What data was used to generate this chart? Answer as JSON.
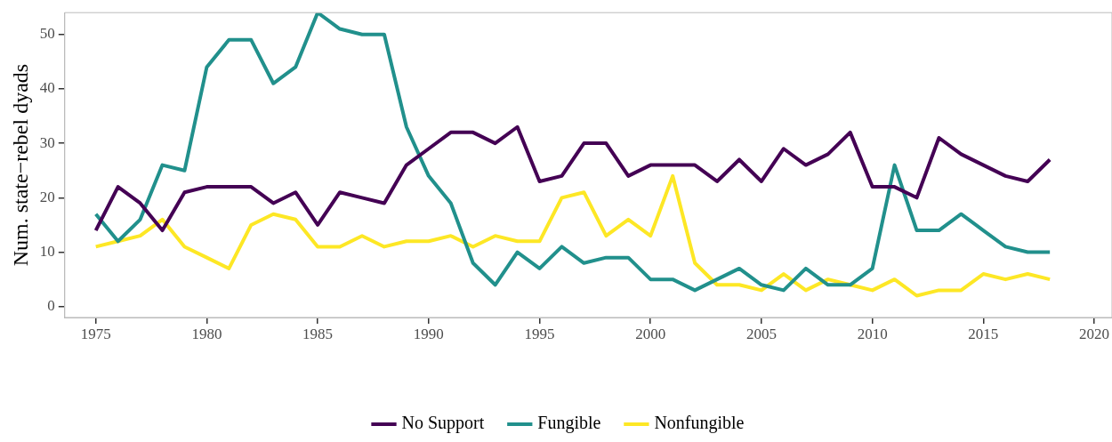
{
  "chart_data": {
    "type": "line",
    "ylabel": "Num. state−rebel dyads",
    "x": [
      1975,
      1976,
      1977,
      1978,
      1979,
      1980,
      1981,
      1982,
      1983,
      1984,
      1985,
      1986,
      1987,
      1988,
      1989,
      1990,
      1991,
      1992,
      1993,
      1994,
      1995,
      1996,
      1997,
      1998,
      1999,
      2000,
      2001,
      2002,
      2003,
      2004,
      2005,
      2006,
      2007,
      2008,
      2009,
      2010,
      2011,
      2012,
      2013,
      2014,
      2015,
      2016,
      2017,
      2018
    ],
    "series": [
      {
        "name": "No Support",
        "color": "#440154",
        "values": [
          14,
          22,
          19,
          14,
          21,
          22,
          22,
          22,
          19,
          21,
          15,
          21,
          20,
          19,
          26,
          29,
          32,
          32,
          30,
          33,
          23,
          24,
          30,
          30,
          24,
          26,
          26,
          26,
          23,
          27,
          23,
          29,
          26,
          28,
          32,
          22,
          22,
          20,
          31,
          28,
          26,
          24,
          23,
          27
        ]
      },
      {
        "name": "Fungible",
        "color": "#21908c",
        "values": [
          17,
          12,
          16,
          26,
          25,
          44,
          49,
          49,
          41,
          44,
          54,
          51,
          50,
          50,
          33,
          24,
          19,
          8,
          4,
          10,
          7,
          11,
          8,
          9,
          9,
          5,
          5,
          3,
          5,
          7,
          4,
          3,
          7,
          4,
          4,
          7,
          26,
          14,
          14,
          17,
          14,
          11,
          10,
          10
        ]
      },
      {
        "name": "Nonfungible",
        "color": "#fde725",
        "values": [
          11,
          12,
          13,
          16,
          11,
          9,
          7,
          15,
          17,
          16,
          11,
          11,
          13,
          11,
          12,
          12,
          13,
          11,
          13,
          12,
          12,
          20,
          21,
          13,
          16,
          13,
          24,
          8,
          4,
          4,
          3,
          6,
          3,
          5,
          4,
          3,
          5,
          2,
          3,
          3,
          6,
          5,
          6,
          5
        ]
      }
    ],
    "xlim": [
      1973.6,
      2020.8
    ],
    "ylim": [
      -2,
      54
    ],
    "xticks": [
      1975,
      1980,
      1985,
      1990,
      1995,
      2000,
      2005,
      2010,
      2015,
      2020
    ],
    "yticks": [
      0,
      10,
      20,
      30,
      40,
      50
    ],
    "grid": false,
    "legend": "bottom",
    "line_style": "solid"
  }
}
